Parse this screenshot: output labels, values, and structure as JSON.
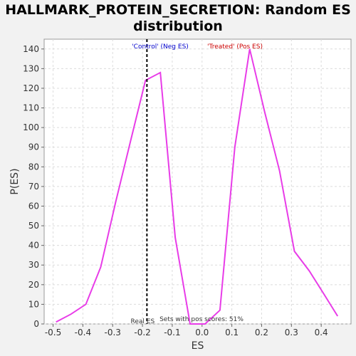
{
  "chart_data": {
    "type": "line",
    "title_line1": "HALLMARK_PROTEIN_SECRETION: Random ES",
    "title_line2": "distribution",
    "xlabel": "ES",
    "ylabel": "P(ES)",
    "xlim": [
      -0.53,
      0.5
    ],
    "ylim": [
      0,
      145
    ],
    "xticks": [
      -0.5,
      -0.4,
      -0.3,
      -0.2,
      -0.1,
      0.0,
      0.1,
      0.2,
      0.3,
      0.4
    ],
    "xtick_labels": [
      "-0.5",
      "-0.4",
      "-0.3",
      "-0.2",
      "-0.1",
      "0.0",
      "0.1",
      "0.2",
      "0.3",
      "0.4"
    ],
    "yticks": [
      0,
      10,
      20,
      30,
      40,
      50,
      60,
      70,
      80,
      90,
      100,
      110,
      120,
      130,
      140
    ],
    "ytick_labels": [
      "0",
      "10",
      "20",
      "30",
      "40",
      "50",
      "60",
      "70",
      "80",
      "90",
      "100",
      "110",
      "120",
      "130",
      "140"
    ],
    "grid": true,
    "series": [
      {
        "color": "#e83ce8",
        "x": [
          -0.49,
          -0.44,
          -0.39,
          -0.34,
          -0.29,
          -0.24,
          -0.19,
          -0.14,
          -0.09,
          -0.04,
          0.01,
          0.06,
          0.11,
          0.16,
          0.21,
          0.26,
          0.31,
          0.36,
          0.41,
          0.455
        ],
        "y": [
          1,
          5,
          10,
          29,
          62,
          93,
          124,
          128,
          44,
          0,
          0,
          7,
          90,
          140,
          108,
          78,
          37,
          27,
          15,
          4
        ]
      }
    ],
    "real_es": -0.185,
    "annotations": {
      "control_label": "'Control' (Neg ES)",
      "treated_label": "'Treated' (Pos ES)",
      "real_es_label": "Real ES",
      "pos_scores_label": "Sets with pos scores: 51%"
    },
    "colors": {
      "line": "#e83ce8",
      "control": "#0000cc",
      "treated": "#cc0000",
      "plot_bg": "#ffffff",
      "page_bg": "#f2f2f2",
      "grid": "#dcdcdc"
    }
  }
}
